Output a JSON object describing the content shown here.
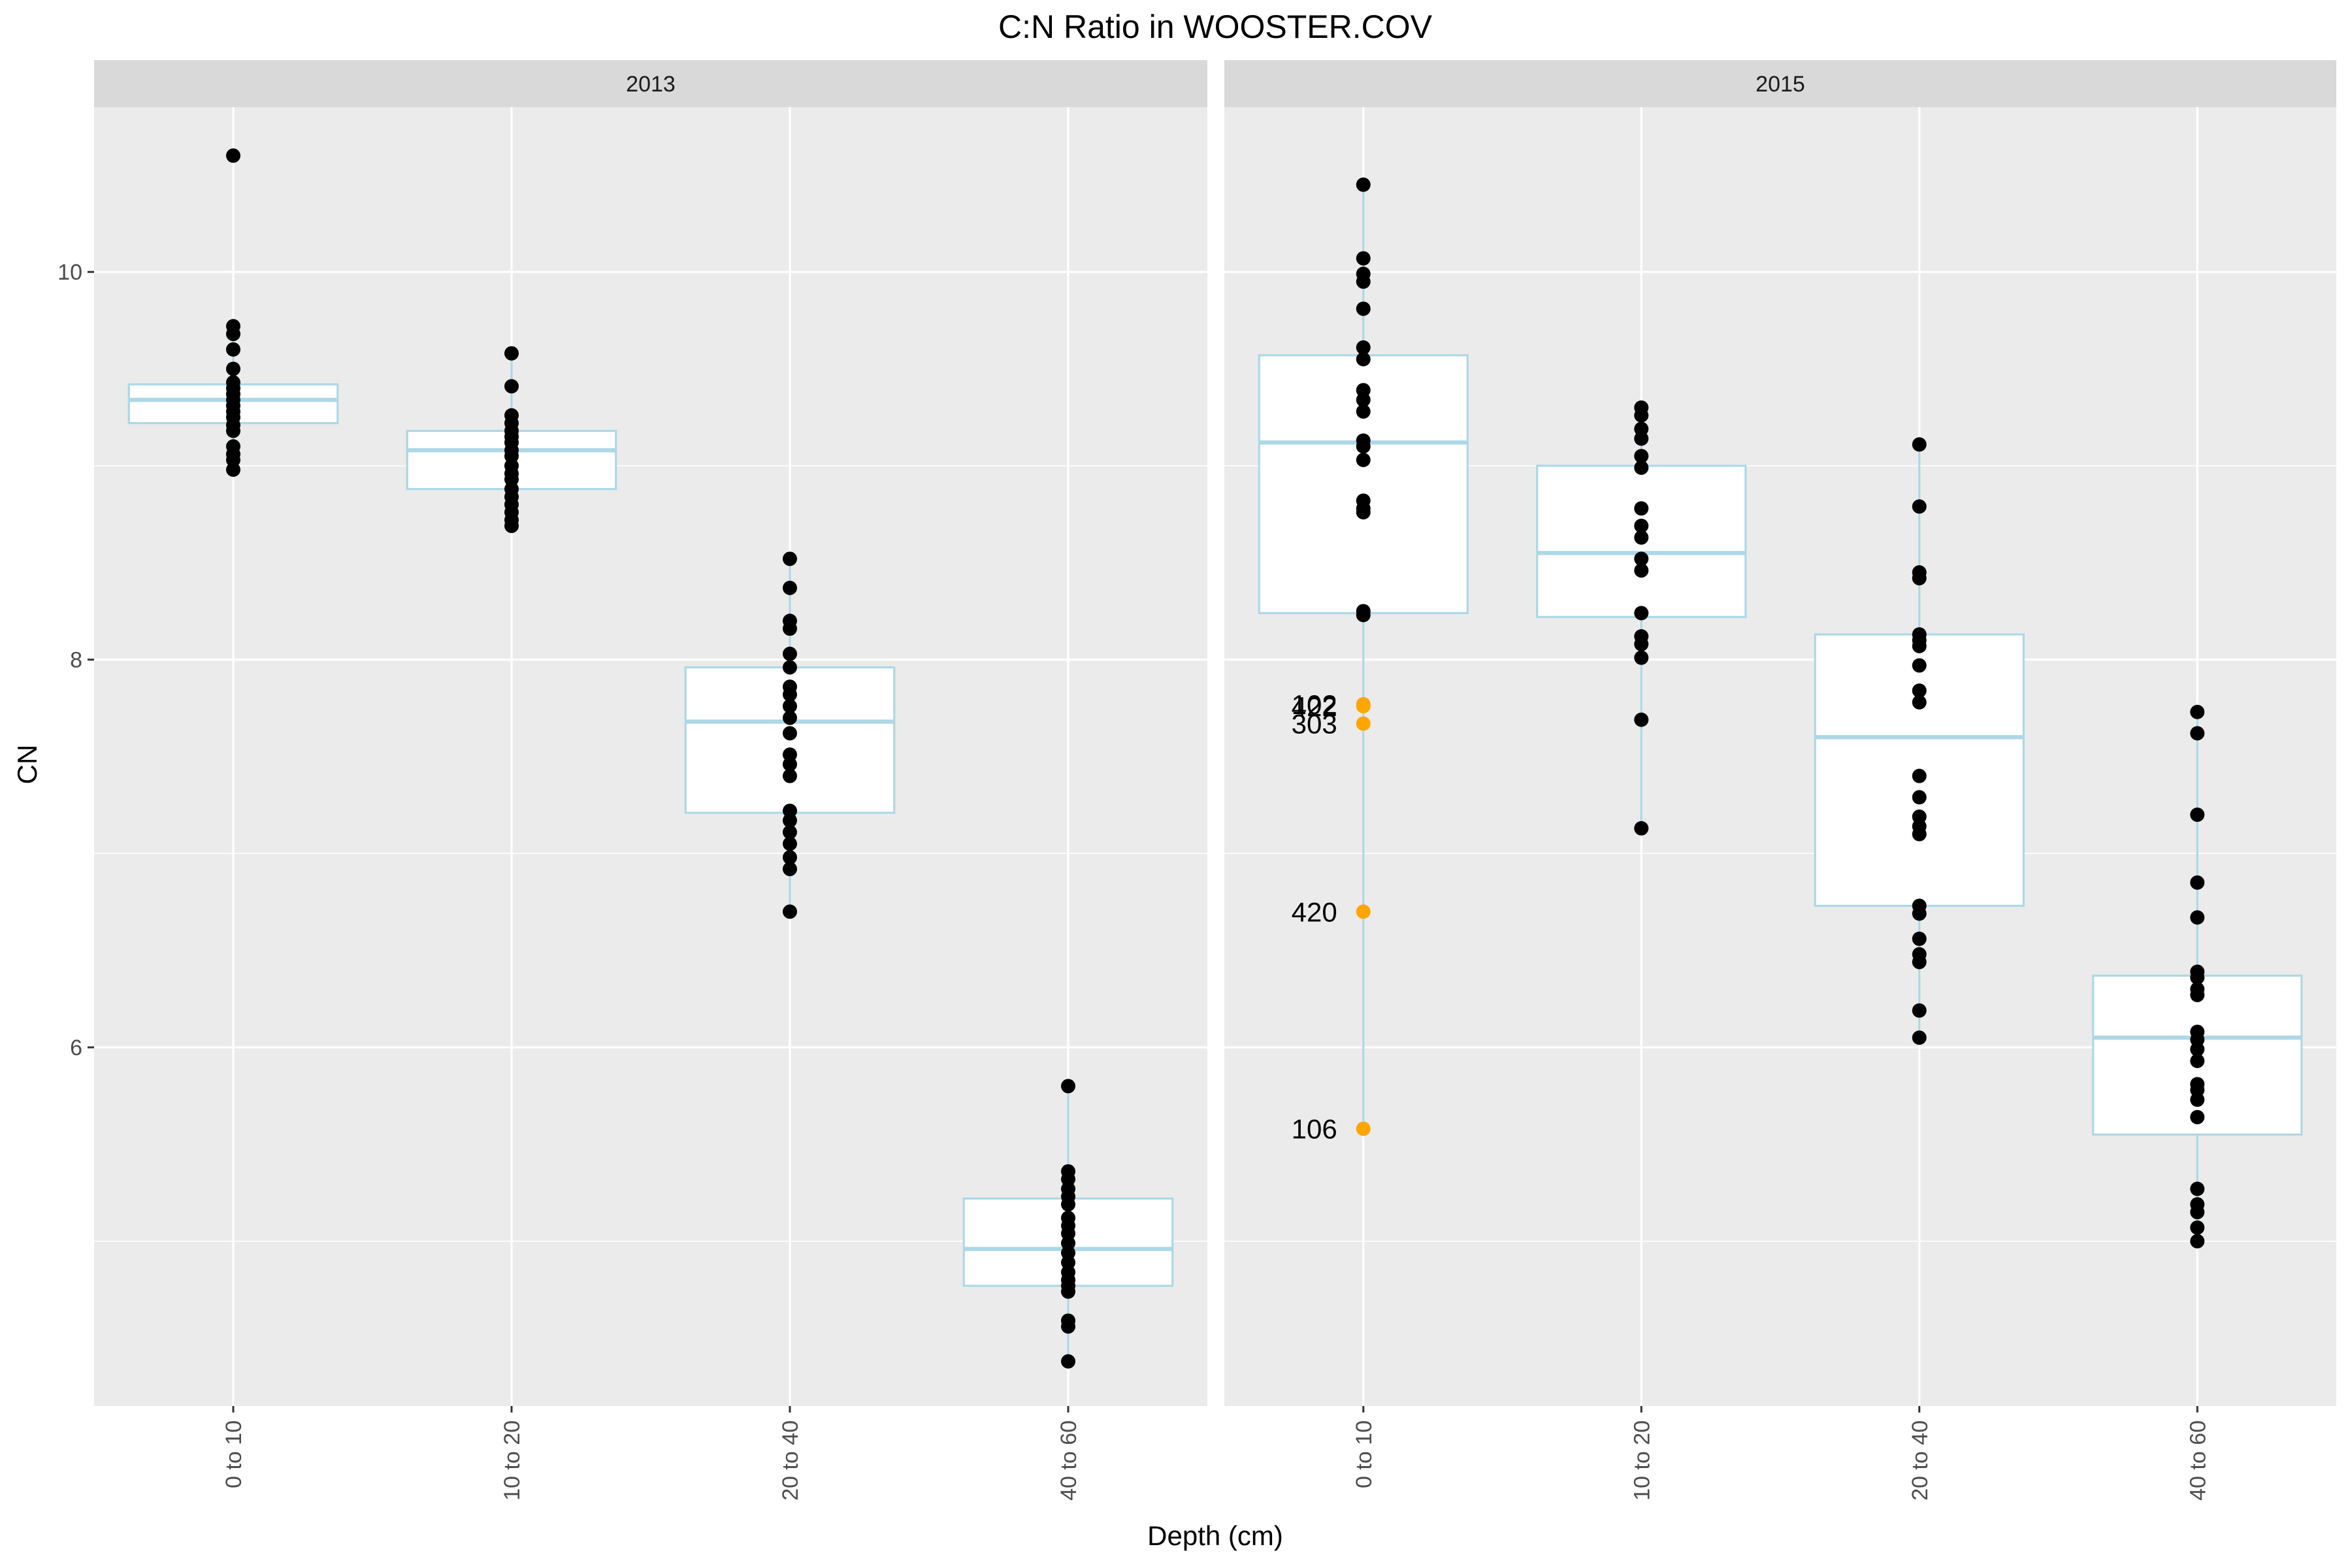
{
  "chart_data": {
    "type": "box",
    "title": "C:N Ratio in WOOSTER.COV",
    "xlabel": "Depth (cm)",
    "ylabel": "CN",
    "ylim": [
      4.15,
      10.85
    ],
    "yticks": [
      6,
      8,
      10
    ],
    "categories": [
      "0 to 10",
      "10 to 20",
      "20 to 40",
      "40 to 60"
    ],
    "grid": true,
    "colors": {
      "panel_background": "#ebebeb",
      "strip_background": "#d9d9d9",
      "box_outline": "#add8e6",
      "box_fill": "#ffffff",
      "point": "#000000",
      "outlier_point": "#ffa500"
    },
    "panels": [
      {
        "label": "2013",
        "boxes": [
          {
            "category": "0 to 10",
            "q1": 9.22,
            "median": 9.34,
            "q3": 9.42,
            "whisker_low": 8.98,
            "whisker_high": 9.72,
            "points": [
              10.6,
              9.72,
              9.68,
              9.6,
              9.5,
              9.43,
              9.4,
              9.37,
              9.34,
              9.31,
              9.28,
              9.25,
              9.21,
              9.18,
              9.1,
              9.06,
              9.03,
              8.98
            ]
          },
          {
            "category": "10 to 20",
            "q1": 8.88,
            "median": 9.08,
            "q3": 9.18,
            "whisker_low": 8.69,
            "whisker_high": 9.58,
            "points": [
              9.58,
              9.41,
              9.26,
              9.22,
              9.18,
              9.15,
              9.12,
              9.08,
              9.05,
              9.0,
              8.96,
              8.93,
              8.88,
              8.84,
              8.8,
              8.76,
              8.72,
              8.69
            ]
          },
          {
            "category": "20 to 40",
            "q1": 7.21,
            "median": 7.68,
            "q3": 7.96,
            "whisker_low": 6.7,
            "whisker_high": 8.52,
            "points": [
              8.52,
              8.37,
              8.2,
              8.16,
              8.03,
              7.96,
              7.86,
              7.82,
              7.76,
              7.7,
              7.62,
              7.51,
              7.46,
              7.4,
              7.22,
              7.17,
              7.11,
              7.05,
              6.98,
              6.92,
              6.7
            ]
          },
          {
            "category": "40 to 60",
            "q1": 4.77,
            "median": 4.96,
            "q3": 5.22,
            "whisker_low": 4.38,
            "whisker_high": 5.8,
            "points": [
              5.8,
              5.36,
              5.32,
              5.27,
              5.23,
              5.19,
              5.12,
              5.08,
              5.04,
              4.99,
              4.94,
              4.89,
              4.84,
              4.8,
              4.77,
              4.74,
              4.59,
              4.56,
              4.38
            ]
          }
        ],
        "outliers": []
      },
      {
        "label": "2015",
        "boxes": [
          {
            "category": "0 to 10",
            "q1": 8.24,
            "median": 9.12,
            "q3": 9.57,
            "whisker_low": 5.58,
            "whisker_high": 10.45,
            "points": [
              10.45,
              10.07,
              9.99,
              9.95,
              9.81,
              9.61,
              9.55,
              9.39,
              9.34,
              9.28,
              9.13,
              9.1,
              9.03,
              8.82,
              8.78,
              8.76,
              8.25,
              8.23
            ]
          },
          {
            "category": "10 to 20",
            "q1": 8.22,
            "median": 8.55,
            "q3": 9.0,
            "whisker_low": 7.13,
            "whisker_high": 9.3,
            "points": [
              9.3,
              9.26,
              9.19,
              9.14,
              9.05,
              8.99,
              8.78,
              8.69,
              8.63,
              8.52,
              8.46,
              8.24,
              8.12,
              8.08,
              8.01,
              7.69,
              7.13
            ]
          },
          {
            "category": "20 to 40",
            "q1": 6.73,
            "median": 7.6,
            "q3": 8.13,
            "whisker_low": 6.05,
            "whisker_high": 9.11,
            "points": [
              9.11,
              8.79,
              8.45,
              8.42,
              8.13,
              8.1,
              8.07,
              7.97,
              7.84,
              7.78,
              7.4,
              7.29,
              7.19,
              7.14,
              7.1,
              6.73,
              6.69,
              6.56,
              6.48,
              6.44,
              6.19,
              6.05
            ]
          },
          {
            "category": "40 to 60",
            "q1": 5.55,
            "median": 6.05,
            "q3": 6.37,
            "whisker_low": 5.0,
            "whisker_high": 7.73,
            "points": [
              7.73,
              7.62,
              7.2,
              6.85,
              6.67,
              6.39,
              6.36,
              6.3,
              6.27,
              6.08,
              6.04,
              5.99,
              5.93,
              5.81,
              5.78,
              5.73,
              5.64,
              5.27,
              5.19,
              5.15,
              5.07,
              5.0
            ]
          }
        ],
        "outliers": [
          {
            "category": "0 to 10",
            "y": 7.77,
            "label": "102"
          },
          {
            "category": "0 to 10",
            "y": 7.76,
            "label": "422"
          },
          {
            "category": "0 to 10",
            "y": 7.67,
            "label": "303"
          },
          {
            "category": "0 to 10",
            "y": 6.7,
            "label": "420"
          },
          {
            "category": "0 to 10",
            "y": 5.58,
            "label": "106"
          }
        ]
      }
    ]
  }
}
